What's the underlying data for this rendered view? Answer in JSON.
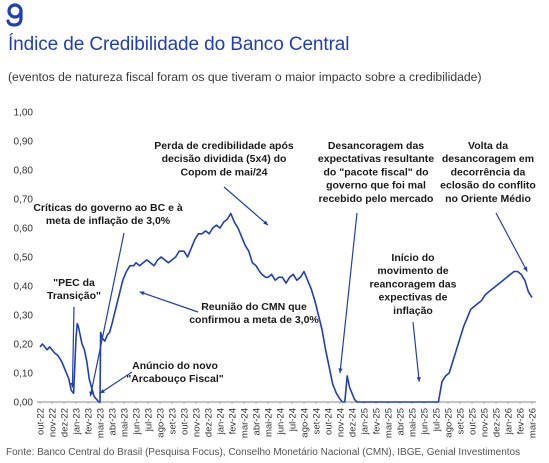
{
  "title": "Índice de Credibilidade do Banco Central",
  "subtitle": "(eventos de natureza fiscal foram os que tiveram o maior impacto sobre a credibilidade)",
  "source": "Fonte: Banco Central do Brasil (Pesquisa Focus), Conselho Monetário Nacional (CMN), IBGE, Genial Investimentos",
  "colors": {
    "brand": "#1f3fb8",
    "line": "#1f3fb8",
    "text": "#1a1a1a",
    "axis": "#888888"
  },
  "logo_icon": "genial-g-logo-icon",
  "chart_data": {
    "type": "line",
    "title": "",
    "xlabel": "",
    "ylabel": "",
    "ylim": [
      0,
      1
    ],
    "yticks": [
      "0,00",
      "0,10",
      "0,20",
      "0,30",
      "0,40",
      "0,50",
      "0,60",
      "0,70",
      "0,80",
      "0,90",
      "1,00"
    ],
    "xticks": [
      "out-22",
      "nov-22",
      "dez-22",
      "jan-23",
      "fev-23",
      "mar-23",
      "abr-23",
      "mai-23",
      "jun-23",
      "jul-23",
      "ago-23",
      "set-23",
      "out-23",
      "nov-23",
      "dez-23",
      "jan-24",
      "fev-24",
      "mar-24",
      "abr-24",
      "mai-24",
      "jun-24",
      "jul-24",
      "ago-24",
      "set-24",
      "out-24",
      "nov-24",
      "dez-24",
      "jan-25",
      "fev-25",
      "mar-25",
      "abr-25",
      "mai-25",
      "jun-25",
      "jul-25",
      "ago-25",
      "set-25",
      "out-25",
      "nov-25",
      "dez-25",
      "jan-26",
      "fev-26",
      "mar-26"
    ],
    "grid": false,
    "series": [
      {
        "name": "",
        "x": [
          0,
          0.2,
          0.4,
          0.6,
          0.8,
          1.0,
          1.2,
          1.5,
          1.8,
          2.0,
          2.2,
          2.4,
          2.6,
          2.8,
          3.0,
          3.1,
          3.2,
          3.3,
          3.4,
          3.5,
          3.7,
          3.9,
          4.0,
          4.1,
          4.3,
          4.5,
          4.7,
          4.9,
          5.0,
          5.05,
          5.2,
          5.4,
          5.6,
          5.8,
          6.0,
          6.3,
          6.6,
          6.9,
          7.2,
          7.5,
          7.8,
          8.0,
          8.3,
          8.6,
          8.9,
          9.2,
          9.5,
          9.8,
          10.1,
          10.4,
          10.7,
          11.0,
          11.3,
          11.6,
          12.0,
          12.3,
          12.6,
          12.9,
          13.2,
          13.5,
          13.8,
          14.1,
          14.4,
          14.7,
          15.0,
          15.3,
          15.6,
          15.9,
          16.2,
          16.5,
          16.8,
          17.1,
          17.4,
          17.7,
          18.0,
          18.3,
          18.5,
          18.8,
          19.0,
          19.3,
          19.6,
          19.9,
          20.2,
          20.5,
          20.8,
          21.1,
          21.4,
          21.7,
          22.0,
          22.3,
          22.6,
          22.9,
          23.2,
          23.5,
          23.8,
          24.1,
          24.4,
          24.7,
          25.0,
          25.2,
          25.4,
          25.6,
          25.8,
          26.0,
          26.2,
          26.4,
          26.6,
          26.8,
          27.0,
          27.5,
          28.0,
          29.0,
          30.0,
          31.0,
          32.0,
          32.5,
          33.0,
          33.2,
          33.5,
          33.8,
          34.1,
          34.4,
          34.7,
          35.0,
          35.3,
          35.6,
          35.9,
          36.2,
          36.5,
          36.8,
          37.1,
          37.4,
          37.7,
          38.0,
          38.3,
          38.6,
          38.9,
          39.2,
          39.5,
          39.8,
          40.1,
          40.4,
          40.7,
          41.0
        ],
        "values": [
          0.19,
          0.2,
          0.19,
          0.18,
          0.19,
          0.18,
          0.17,
          0.16,
          0.14,
          0.12,
          0.1,
          0.08,
          0.04,
          0.03,
          0.22,
          0.27,
          0.26,
          0.24,
          0.22,
          0.2,
          0.18,
          0.14,
          0.11,
          0.08,
          0.05,
          0.02,
          0.01,
          0.0,
          0.0,
          0.24,
          0.22,
          0.21,
          0.23,
          0.24,
          0.27,
          0.32,
          0.37,
          0.42,
          0.45,
          0.47,
          0.47,
          0.48,
          0.47,
          0.48,
          0.49,
          0.48,
          0.47,
          0.49,
          0.5,
          0.49,
          0.48,
          0.49,
          0.5,
          0.52,
          0.52,
          0.5,
          0.53,
          0.56,
          0.58,
          0.58,
          0.59,
          0.58,
          0.6,
          0.61,
          0.6,
          0.62,
          0.63,
          0.65,
          0.62,
          0.6,
          0.57,
          0.54,
          0.52,
          0.48,
          0.47,
          0.45,
          0.44,
          0.43,
          0.43,
          0.44,
          0.42,
          0.43,
          0.43,
          0.41,
          0.43,
          0.44,
          0.42,
          0.43,
          0.45,
          0.42,
          0.39,
          0.35,
          0.3,
          0.25,
          0.18,
          0.12,
          0.06,
          0.03,
          0.01,
          0.0,
          0.0,
          0.09,
          0.05,
          0.03,
          0.01,
          0.0,
          0.0,
          0.0,
          0.0,
          0.0,
          0.0,
          0.0,
          0.0,
          0.0,
          0.0,
          0.0,
          0.0,
          0.0,
          0.07,
          0.09,
          0.1,
          0.14,
          0.18,
          0.22,
          0.26,
          0.29,
          0.32,
          0.33,
          0.34,
          0.35,
          0.37,
          0.38,
          0.39,
          0.4,
          0.41,
          0.42,
          0.43,
          0.44,
          0.45,
          0.45,
          0.44,
          0.42,
          0.38,
          0.36
        ]
      }
    ],
    "annotations": [
      {
        "lines": [
          "\"PEC da",
          "Transição\""
        ],
        "target": [
          2.7,
          0.05
        ]
      },
      {
        "lines": [
          "Críticas do governo ao BC e à",
          "meta de inflação de 3,0%"
        ],
        "target": [
          4.2,
          0.02
        ]
      },
      {
        "lines": [
          "Anúncio do novo",
          "\"Arcabouço Fiscal\""
        ],
        "target": [
          5.0,
          0.03
        ]
      },
      {
        "lines": [
          "Reunião do CMN que",
          "confirmou a meta de 3,0%"
        ],
        "target": [
          8.3,
          0.38
        ]
      },
      {
        "lines": [
          "Perda de credibilidade após",
          "decisão dividida (5x4) do",
          "Copom de mai/24"
        ],
        "target": [
          19.0,
          0.61
        ]
      },
      {
        "lines": [
          "Desancoragem das",
          "expectativas resultante",
          "do \"pacote fiscal\" do",
          "governo que foi mal",
          "recebido pelo mercado"
        ],
        "target": [
          25.0,
          0.1
        ]
      },
      {
        "lines": [
          "Início do",
          "movimento de",
          "reancoragem das",
          "expectivas de",
          "inflação"
        ],
        "target": [
          31.6,
          0.07
        ]
      },
      {
        "lines": [
          "Volta da",
          "desancoragem em",
          "decorrência da",
          "eclosão do conflito",
          "no Oriente Médio"
        ],
        "target": [
          40.6,
          0.45
        ]
      }
    ]
  }
}
